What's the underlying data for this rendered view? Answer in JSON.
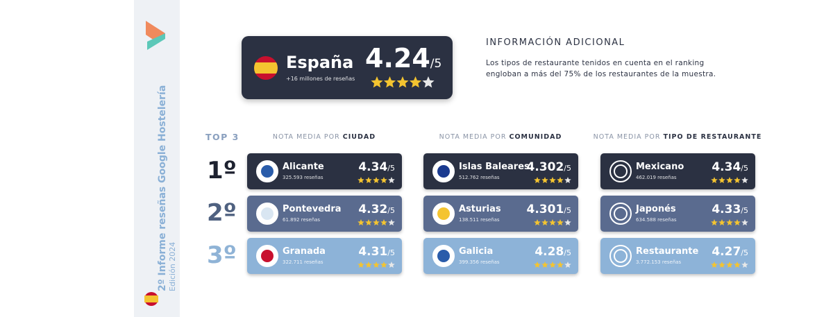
{
  "sidebar": {
    "title": "2º Informe reseñas Google Hostelería",
    "edition": "Edición 2024"
  },
  "hero": {
    "name": "España",
    "reviews": "+16 millones de reseñas",
    "score": 4.24
  },
  "scale": "/5",
  "info": {
    "title": "INFORMACIÓN ADICIONAL",
    "text": "Los tipos de restaurante tenidos en cuenta en el ranking engloban a más del 75% de los restaurantes de la muestra."
  },
  "top_label": "TOP 3",
  "ranks": [
    "1º",
    "2º",
    "3º"
  ],
  "columns": [
    {
      "heading_prefix": "NOTA MEDIA POR",
      "heading_bold": "CIUDAD",
      "items": [
        {
          "name": "Alicante",
          "reviews": "325.593 reseñas",
          "score": 4.34
        },
        {
          "name": "Pontevedra",
          "reviews": "61.892 reseñas",
          "score": 4.32
        },
        {
          "name": "Granada",
          "reviews": "322.711 reseñas",
          "score": 4.31
        }
      ]
    },
    {
      "heading_prefix": "NOTA MEDIA POR",
      "heading_bold": "COMUNIDAD",
      "items": [
        {
          "name": "Islas Baleares",
          "reviews": "512.762 reseñas",
          "score": 4.302
        },
        {
          "name": "Asturias",
          "reviews": "138.511 reseñas",
          "score": 4.301
        },
        {
          "name": "Galicia",
          "reviews": "399.356 reseñas",
          "score": 4.28
        }
      ]
    },
    {
      "heading_prefix": "NOTA MEDIA POR",
      "heading_bold": "TIPO DE RESTAURANTE",
      "items": [
        {
          "name": "Mexicano",
          "reviews": "462.019 reseñas",
          "score": 4.34
        },
        {
          "name": "Japonés",
          "reviews": "634.588 reseñas",
          "score": 4.33
        },
        {
          "name": "Restaurante",
          "reviews": "3.772.153 reseñas",
          "score": 4.27
        }
      ]
    }
  ]
}
